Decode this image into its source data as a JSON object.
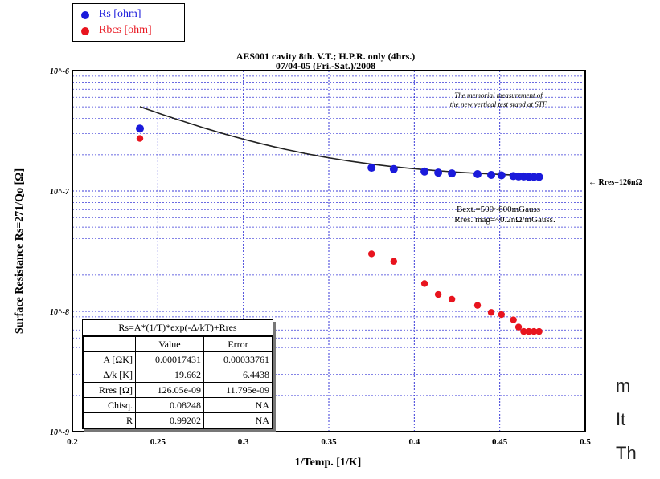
{
  "chart_data": {
    "type": "scatter",
    "title": "AES001 cavity 8th. V.T.; H.P.R. only (4hrs.)",
    "subtitle": "07/04-05 (Fri.-Sat.)/2008",
    "xlabel": "1/Temp. [1/K]",
    "ylabel": "Surface Resistance Rs=271/Qo [Ω]",
    "xlim": [
      0.2,
      0.5
    ],
    "ylim": [
      1e-09,
      1e-06
    ],
    "yscale": "log",
    "x_ticks": [
      "0.2",
      "0.25",
      "0.3",
      "0.35",
      "0.4",
      "0.45",
      "0.5"
    ],
    "y_ticks": [
      "10^-9",
      "10^-8",
      "10^-7",
      "10^-6"
    ],
    "grid": true,
    "legend": "top-left",
    "series": [
      {
        "name": "Rs [ohm]",
        "color": "#1a1adb",
        "x": [
          0.2395,
          0.375,
          0.388,
          0.406,
          0.414,
          0.422,
          0.437,
          0.445,
          0.451,
          0.458,
          0.461,
          0.464,
          0.467,
          0.47,
          0.473
        ],
        "y": [
          3.3e-07,
          1.56e-07,
          1.52e-07,
          1.45e-07,
          1.42e-07,
          1.4e-07,
          1.38e-07,
          1.36e-07,
          1.35e-07,
          1.33e-07,
          1.32e-07,
          1.32e-07,
          1.31e-07,
          1.31e-07,
          1.31e-07
        ]
      },
      {
        "name": "Rbcs [ohm]",
        "color": "#e8141e",
        "x": [
          0.2395,
          0.375,
          0.388,
          0.406,
          0.414,
          0.422,
          0.437,
          0.445,
          0.451,
          0.458,
          0.461,
          0.464,
          0.467,
          0.47,
          0.473
        ],
        "y": [
          2.73e-07,
          3e-08,
          2.6e-08,
          1.7e-08,
          1.38e-08,
          1.26e-08,
          1.12e-08,
          9.8e-09,
          9.4e-09,
          8.5e-09,
          7.4e-09,
          6.8e-09,
          6.8e-09,
          6.8e-09,
          6.8e-09
        ]
      }
    ],
    "fit": {
      "equation": "Rs=A*(1/T)*exp(-Δ/kT)+Rres",
      "A": 0.00017431,
      "delta_k": 19.662,
      "rres": 1.2605e-07
    },
    "annotations": {
      "note_line1": "The memorial measurement of",
      "note_line2": "the new vertical test stand at STF",
      "rres_label": "← Rres=126nΩ",
      "bext": "Bext.=500~600mGauss",
      "rres_mag": "Rres. mag=~0.2nΩ/mGauss."
    }
  },
  "fit_table": {
    "equation": "Rs=A*(1/T)*exp(-Δ/kT)+Rres",
    "headers": [
      "",
      "Value",
      "Error"
    ],
    "rows": [
      {
        "label": "A [ΩK]",
        "value": "0.00017431",
        "error": "0.00033761"
      },
      {
        "label": "Δ/k [K]",
        "value": "19.662",
        "error": "6.4438"
      },
      {
        "label": "Rres [Ω]",
        "value": "126.05e-09",
        "error": "11.795e-09"
      },
      {
        "label": "Chisq.",
        "value": "0.08248",
        "error": "NA"
      },
      {
        "label": "R",
        "value": "0.99202",
        "error": "NA"
      }
    ]
  },
  "side_text": [
    "m",
    "It",
    "Th"
  ]
}
